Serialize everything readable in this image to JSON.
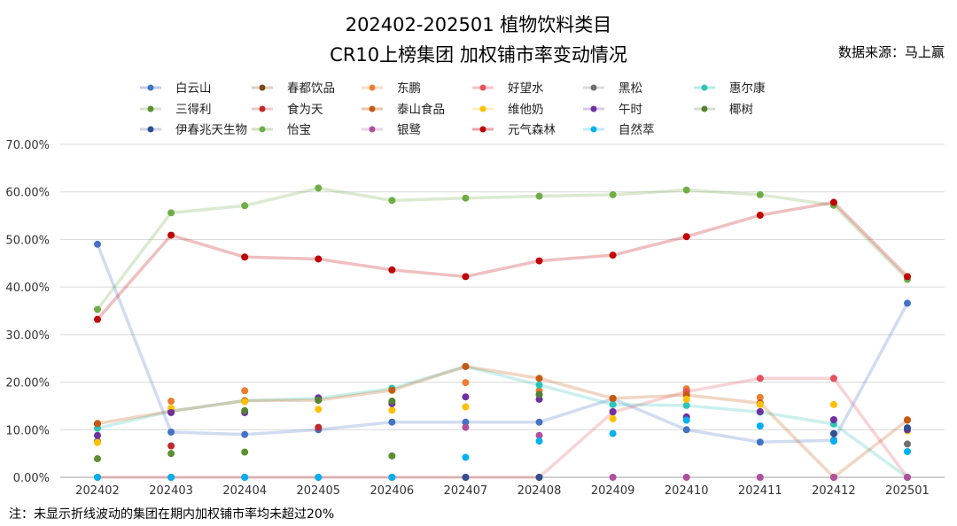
{
  "chart_data": {
    "type": "line",
    "title": "202402-202501 植物饮料类目",
    "subtitle": "CR10上榜集团 加权铺市率变动情况",
    "source": "数据来源：马上赢",
    "note": "注：未显示折线波动的集团在期内加权铺市率均未超过20%",
    "xlabel": "",
    "ylabel": "",
    "ylim": [
      0,
      70
    ],
    "y_ticks": [
      "0.00%",
      "10.00%",
      "20.00%",
      "30.00%",
      "40.00%",
      "50.00%",
      "60.00%",
      "70.00%"
    ],
    "grid": true,
    "legend_placement": "top",
    "categories": [
      "202402",
      "202403",
      "202404",
      "202405",
      "202406",
      "202407",
      "202408",
      "202409",
      "202410",
      "202411",
      "202412",
      "202501"
    ],
    "series": [
      {
        "name": "白云山",
        "color": "#4472C4",
        "line": true,
        "values": [
          49.0,
          9.5,
          9.0,
          10.0,
          11.6,
          11.6,
          11.6,
          16.5,
          10.0,
          7.4,
          7.8,
          36.6
        ]
      },
      {
        "name": "春都饮品",
        "color": "#7B4A12",
        "line": false,
        "values": [
          11.2,
          null,
          null,
          null,
          null,
          null,
          null,
          null,
          null,
          null,
          null,
          null
        ]
      },
      {
        "name": "东鹏",
        "color": "#ED7D31",
        "line": false,
        "values": [
          null,
          16.0,
          18.2,
          null,
          18.5,
          19.9,
          18.2,
          16.6,
          18.6,
          16.8,
          null,
          12.1
        ]
      },
      {
        "name": "好望水",
        "color": "#E8505B",
        "line": true,
        "values": [
          0,
          0,
          0,
          0,
          0,
          0,
          0,
          13.7,
          18.0,
          20.8,
          20.8,
          0
        ]
      },
      {
        "name": "黑松",
        "color": "#707070",
        "line": false,
        "values": [
          7.6,
          null,
          null,
          null,
          null,
          null,
          null,
          null,
          null,
          null,
          null,
          7.0
        ]
      },
      {
        "name": "惠尔康",
        "color": "#2EC4B6",
        "line": true,
        "values": [
          10.3,
          13.9,
          16.1,
          16.6,
          18.7,
          23.3,
          19.4,
          15.3,
          15.1,
          13.7,
          11.2,
          0
        ]
      },
      {
        "name": "三得利",
        "color": "#5B8F2F",
        "line": false,
        "values": [
          3.9,
          5.0,
          5.3,
          null,
          4.5,
          null,
          17.4,
          null,
          null,
          null,
          null,
          null
        ]
      },
      {
        "name": "食为天",
        "color": "#C0282D",
        "line": false,
        "values": [
          null,
          6.6,
          null,
          10.5,
          null,
          null,
          null,
          null,
          null,
          null,
          null,
          null
        ]
      },
      {
        "name": "泰山食品",
        "color": "#C55A11",
        "line": true,
        "values": [
          11.3,
          13.9,
          16.1,
          16.2,
          18.3,
          23.3,
          20.8,
          16.6,
          17.3,
          15.6,
          0,
          12.0
        ]
      },
      {
        "name": "维他奶",
        "color": "#FFC000",
        "line": false,
        "values": [
          7.3,
          14.5,
          15.9,
          14.3,
          14.1,
          14.8,
          null,
          12.3,
          16.4,
          15.3,
          15.3,
          9.8
        ]
      },
      {
        "name": "午时",
        "color": "#7030A0",
        "line": false,
        "values": [
          8.8,
          13.6,
          13.6,
          16.7,
          15.5,
          16.9,
          16.4,
          13.8,
          12.7,
          13.8,
          12.1,
          10.0
        ]
      },
      {
        "name": "椰树",
        "color": "#548235",
        "line": false,
        "values": [
          null,
          null,
          14.0,
          16.2,
          16.0,
          null,
          17.4,
          null,
          null,
          null,
          null,
          null
        ]
      },
      {
        "name": "伊春兆天生物",
        "color": "#2F4F8F",
        "line": false,
        "values": [
          null,
          null,
          null,
          null,
          null,
          0,
          0,
          null,
          null,
          null,
          9.2,
          10.4
        ]
      },
      {
        "name": "怡宝",
        "color": "#70AD47",
        "line": true,
        "values": [
          35.3,
          55.6,
          57.1,
          60.8,
          58.2,
          58.7,
          59.1,
          59.4,
          60.4,
          59.4,
          57.2,
          41.6
        ]
      },
      {
        "name": "银鹭",
        "color": "#B04E9F",
        "line": false,
        "values": [
          null,
          null,
          null,
          null,
          null,
          10.5,
          8.8,
          0,
          0,
          0,
          0,
          0
        ]
      },
      {
        "name": "元气森林",
        "color": "#C00000",
        "line": true,
        "values": [
          33.2,
          50.9,
          46.3,
          45.9,
          43.6,
          42.2,
          45.5,
          46.7,
          50.6,
          55.1,
          57.8,
          42.2
        ]
      },
      {
        "name": "自然萃",
        "color": "#00B0F0",
        "line": false,
        "values": [
          0,
          0,
          0,
          0,
          0,
          4.2,
          7.6,
          9.2,
          12.0,
          10.8,
          7.6,
          5.4
        ]
      }
    ]
  }
}
